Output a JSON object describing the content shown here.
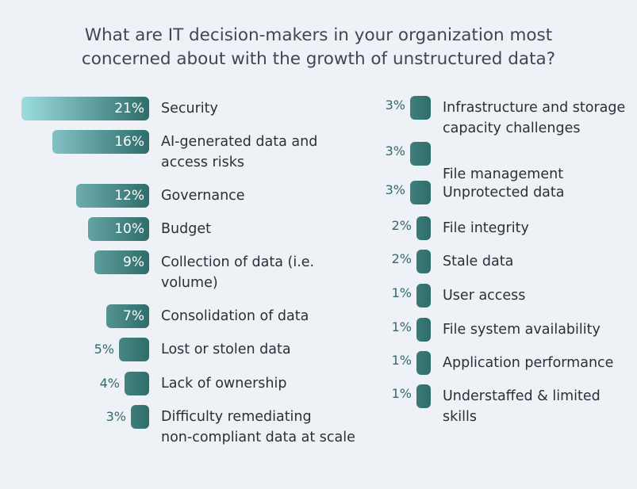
{
  "chart_data": {
    "type": "bar",
    "orientation": "horizontal",
    "title": "What are IT decision-makers in your organization most concerned about with the growth of unstructured data?",
    "title_lines": [
      "What are IT decision-makers in your organization most",
      "concerned about with the growth of unstructured data?"
    ],
    "unit": "%",
    "columns": [
      {
        "categories": [
          "Security",
          "AI-generated data and access risks",
          "Governance",
          "Budget",
          "Collection of data (i.e. volume)",
          "Consolidation of data",
          "Lost or stolen data",
          "Lack of ownership",
          "Difficulty remediating non-compliant data at scale"
        ],
        "label_lines": [
          [
            "Security"
          ],
          [
            "AI-generated data and",
            "access risks"
          ],
          [
            "Governance"
          ],
          [
            "Budget"
          ],
          [
            "Collection of data (i.e.",
            "volume)"
          ],
          [
            "Consolidation of data"
          ],
          [
            "Lost or stolen data"
          ],
          [
            "Lack of ownership"
          ],
          [
            "Difficulty remediating",
            "non-compliant data at scale"
          ]
        ],
        "values": [
          21,
          16,
          12,
          10,
          9,
          7,
          5,
          4,
          3
        ],
        "value_labels": [
          "21%",
          "16%",
          "12%",
          "10%",
          "9%",
          "7%",
          "5%",
          "4%",
          "3%"
        ]
      },
      {
        "categories": [
          "Infrastructure and storage capacity challenges",
          "File management",
          "Unprotected data",
          "File integrity",
          "Stale data",
          "User access",
          "File system availability",
          "Application performance",
          "Understaffed & limited skills"
        ],
        "label_lines": [
          [
            "Infrastructure and storage",
            "capacity challenges"
          ],
          [
            "",
            "File management"
          ],
          [
            "Unprotected data"
          ],
          [
            "File integrity"
          ],
          [
            "Stale data"
          ],
          [
            "User access"
          ],
          [
            "File system availability"
          ],
          [
            "Application performance"
          ],
          [
            "Understaffed & limited",
            "skills"
          ]
        ],
        "values": [
          3,
          3,
          3,
          2,
          2,
          1,
          1,
          1,
          1
        ],
        "value_labels": [
          "3%",
          "3%",
          "3%",
          "2%",
          "2%",
          "1%",
          "1%",
          "1%",
          "1%"
        ]
      }
    ],
    "colors": {
      "bar_light": "#9fe0e3",
      "bar_dark": "#2f6d6b",
      "value_text_outside": "#2f6b6a",
      "background": "#eef2f7"
    }
  }
}
